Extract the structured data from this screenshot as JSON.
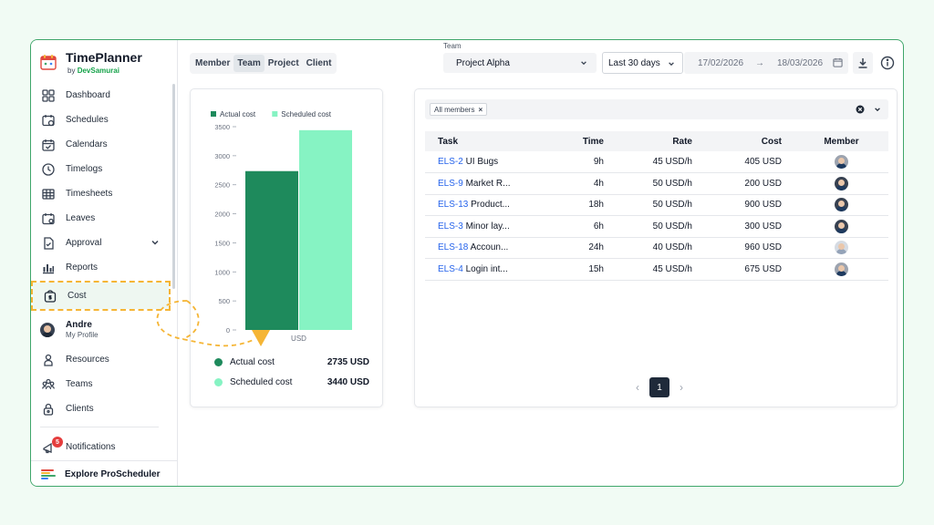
{
  "brand": {
    "name": "TimePlanner",
    "by": "by",
    "by_company": "DevSamurai"
  },
  "nav": [
    {
      "label": "Dashboard",
      "icon": "dashboard-icon"
    },
    {
      "label": "Schedules",
      "icon": "schedules-icon"
    },
    {
      "label": "Calendars",
      "icon": "calendar-icon"
    },
    {
      "label": "Timelogs",
      "icon": "clock-icon"
    },
    {
      "label": "Timesheets",
      "icon": "grid-icon"
    },
    {
      "label": "Leaves",
      "icon": "leaves-icon"
    },
    {
      "label": "Approval",
      "icon": "approval-icon"
    },
    {
      "label": "Reports",
      "icon": "bar-chart-icon"
    },
    {
      "label": "Cost",
      "icon": "cost-icon"
    }
  ],
  "profile": {
    "name": "Andre",
    "sub": "My Profile"
  },
  "nav2": [
    {
      "label": "Resources",
      "icon": "resources-icon"
    },
    {
      "label": "Teams",
      "icon": "teams-icon"
    },
    {
      "label": "Clients",
      "icon": "clients-icon"
    }
  ],
  "notifications": {
    "label": "Notifications",
    "count": "5"
  },
  "explore": {
    "label": "Explore ProScheduler"
  },
  "tabs": [
    "Member",
    "Team",
    "Project",
    "Client"
  ],
  "team_filter": {
    "label": "Team",
    "value": "Project Alpha"
  },
  "range": {
    "value": "Last 30 days",
    "start": "17/02/2026",
    "arrow": "→",
    "end": "18/03/2026"
  },
  "chart_data": {
    "type": "bar",
    "categories": [
      "USD"
    ],
    "series": [
      {
        "name": "Actual cost",
        "values": [
          2735
        ],
        "color": "#1e8a5c"
      },
      {
        "name": "Scheduled cost",
        "values": [
          3440
        ],
        "color": "#86f3c3"
      }
    ],
    "y_ticks": [
      0,
      500,
      1000,
      1500,
      2000,
      2500,
      3000,
      3500
    ],
    "ylim": [
      0,
      3500
    ],
    "legend_position": "top-left",
    "grid": false
  },
  "totals": [
    {
      "label": "Actual cost",
      "value": "2735 USD",
      "color": "#1e8a5c"
    },
    {
      "label": "Scheduled cost",
      "value": "3440 USD",
      "color": "#86f3c3"
    }
  ],
  "filter": {
    "chip": "All members",
    "chip_close": "×"
  },
  "table": {
    "headers": {
      "task": "Task",
      "time": "Time",
      "rate": "Rate",
      "cost": "Cost",
      "member": "Member"
    },
    "rows": [
      {
        "id": "ELS-2",
        "name": "UI Bugs",
        "time": "9h",
        "rate": "45 USD/h",
        "cost": "405 USD",
        "avatar": "blue"
      },
      {
        "id": "ELS-9",
        "name": "Market R...",
        "time": "4h",
        "rate": "50 USD/h",
        "cost": "200 USD",
        "avatar": "dark"
      },
      {
        "id": "ELS-13",
        "name": "Product...",
        "time": "18h",
        "rate": "50 USD/h",
        "cost": "900 USD",
        "avatar": "dark"
      },
      {
        "id": "ELS-3",
        "name": "Minor lay...",
        "time": "6h",
        "rate": "50 USD/h",
        "cost": "300 USD",
        "avatar": "dark"
      },
      {
        "id": "ELS-18",
        "name": "Accoun...",
        "time": "24h",
        "rate": "40 USD/h",
        "cost": "960 USD",
        "avatar": "light"
      },
      {
        "id": "ELS-4",
        "name": "Login int...",
        "time": "15h",
        "rate": "45 USD/h",
        "cost": "675 USD",
        "avatar": "blue"
      }
    ]
  },
  "pagination": {
    "current": "1",
    "prev": "‹",
    "next": "›"
  }
}
